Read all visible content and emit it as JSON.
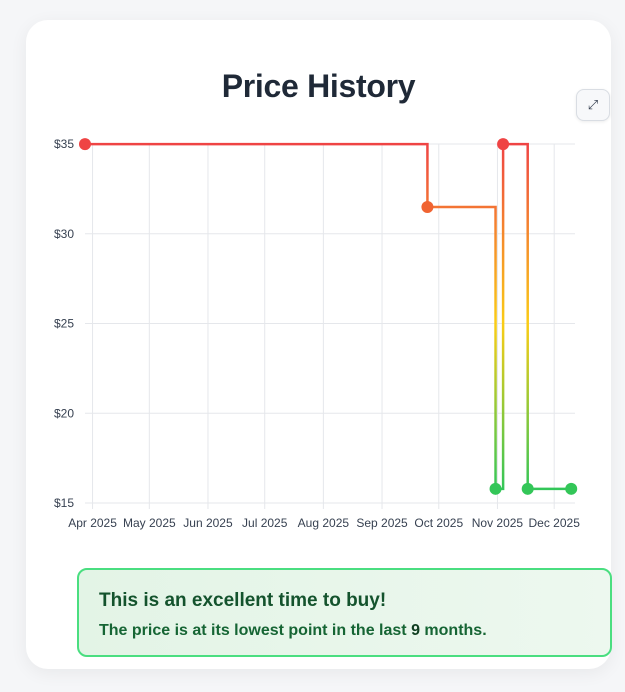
{
  "card": {
    "title": "Price History",
    "expand_icon": "expand-icon",
    "expand_glyph": "⤢"
  },
  "chart_data": {
    "type": "line",
    "step": true,
    "x_axis_type": "time",
    "xlim": [
      "2025-03-28",
      "2025-12-12"
    ],
    "ylim": [
      15,
      35
    ],
    "yticks": [
      15,
      20,
      25,
      30,
      35
    ],
    "ytick_labels": [
      "$15",
      "$20",
      "$25",
      "$30",
      "$35"
    ],
    "xticks": [
      "2025-04-01",
      "2025-05-01",
      "2025-06-01",
      "2025-07-01",
      "2025-08-01",
      "2025-09-01",
      "2025-10-01",
      "2025-11-01",
      "2025-12-01"
    ],
    "xtick_labels": [
      "Apr 2025",
      "May 2025",
      "Jun 2025",
      "Jul 2025",
      "Aug 2025",
      "Sep 2025",
      "Oct 2025",
      "Nov 2025",
      "Dec 2025"
    ],
    "grid": true,
    "legend": false,
    "color_scale": {
      "low": "#22c55e",
      "mid": "#facc15",
      "high": "#ef4444"
    },
    "series": [
      {
        "points": [
          {
            "x": "2025-03-28",
            "y": 34.99
          },
          {
            "x": "2025-09-25",
            "y": 31.49
          },
          {
            "x": "2025-10-31",
            "y": 15.79
          },
          {
            "x": "2025-11-04",
            "y": 34.99
          },
          {
            "x": "2025-11-17",
            "y": 15.79
          },
          {
            "x": "2025-12-10",
            "y": 15.79
          }
        ]
      }
    ]
  },
  "banner": {
    "headline": "This is an excellent time to buy!",
    "message_before": "The price is at its lowest point in the last ",
    "months": "9",
    "message_after": " months."
  }
}
